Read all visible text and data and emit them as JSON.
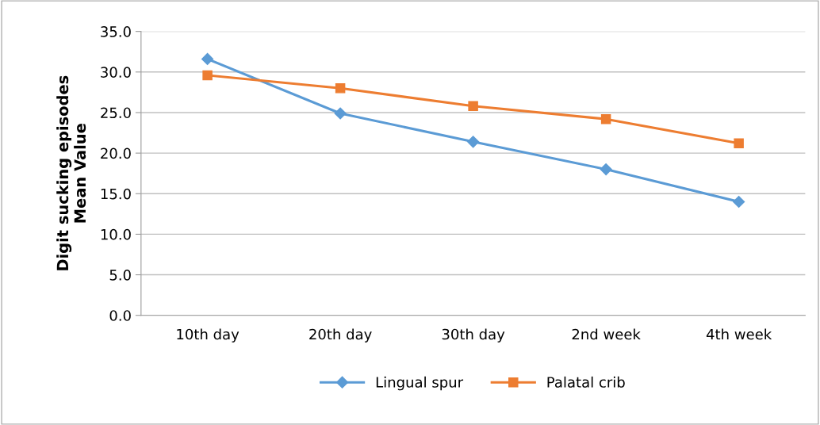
{
  "chart_data": {
    "type": "line",
    "ylabel": "Digit sucking episodes\nMean Value",
    "categories": [
      "10th day",
      "20th day",
      "30th day",
      "2nd week",
      "4th week"
    ],
    "series": [
      {
        "name": "Lingual spur",
        "color": "#5b9bd5",
        "marker": "diamond",
        "values": [
          31.6,
          24.9,
          21.4,
          18.0,
          14.0
        ]
      },
      {
        "name": "Palatal crib",
        "color": "#ed7d31",
        "marker": "square",
        "values": [
          29.6,
          28.0,
          25.8,
          24.2,
          21.2
        ]
      }
    ],
    "ylim": [
      0,
      35
    ],
    "yticks": [
      {
        "value": 0,
        "label": "0.0"
      },
      {
        "value": 5,
        "label": "5.0"
      },
      {
        "value": 10,
        "label": "10.0"
      },
      {
        "value": 15,
        "label": "15.0"
      },
      {
        "value": 20,
        "label": "20.0"
      },
      {
        "value": 25,
        "label": "25.0"
      },
      {
        "value": 30,
        "label": "30.0"
      },
      {
        "value": 35,
        "label": "35.0"
      }
    ],
    "grid": "y",
    "legend": "bottom",
    "line_style": "solid"
  }
}
